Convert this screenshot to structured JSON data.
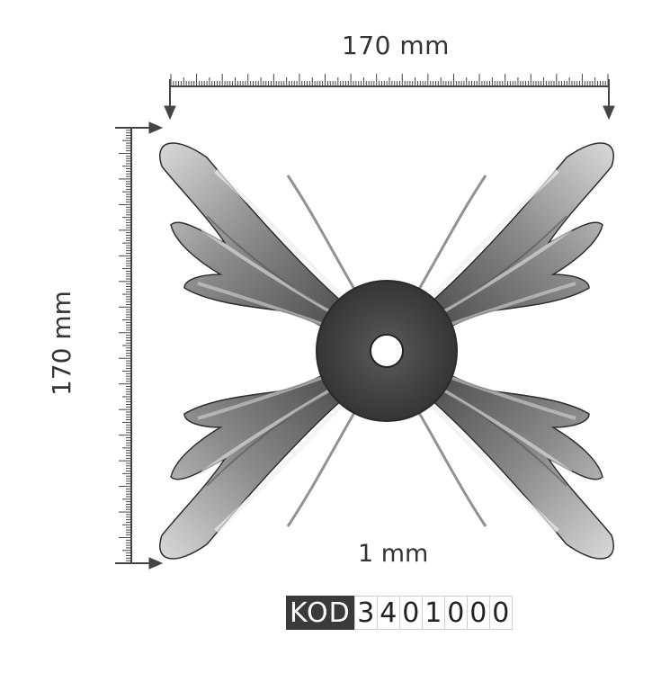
{
  "dimensions": {
    "width_label": "170 mm",
    "height_label": "170 mm",
    "thickness_label": "1 mm"
  },
  "code": {
    "prefix": "KOD",
    "digits": [
      "3",
      "4",
      "0",
      "1",
      "0",
      "0",
      "0"
    ]
  },
  "colors": {
    "ruler": "#444444",
    "metal_dark": "#3c3c3c",
    "metal_mid": "#7a7a7a",
    "metal_light": "#d0d0d0",
    "code_bg": "#3a3a3a"
  }
}
